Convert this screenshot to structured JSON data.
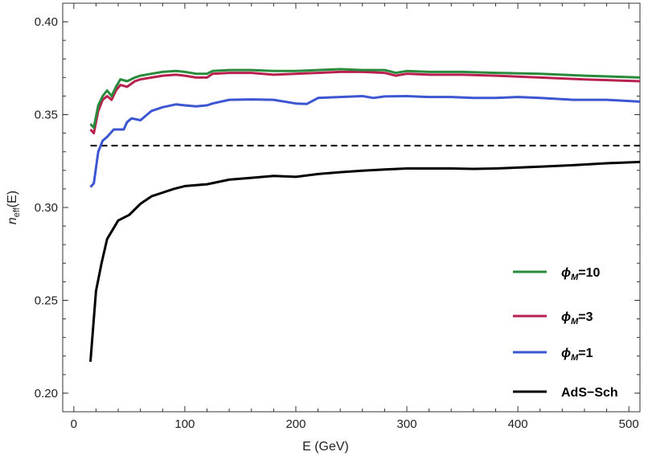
{
  "chart_data": {
    "type": "line",
    "xlabel": "E (GeV)",
    "ylabel_main": "n",
    "ylabel_sub": "eff",
    "ylabel_tail": "(E)",
    "xlim": [
      -10,
      510
    ],
    "ylim": [
      0.19,
      0.41
    ],
    "xticks": [
      0,
      100,
      200,
      300,
      400,
      500
    ],
    "xtick_labels": [
      "0",
      "100",
      "200",
      "300",
      "400",
      "500"
    ],
    "yticks": [
      0.2,
      0.25,
      0.3,
      0.35,
      0.4
    ],
    "ytick_labels": [
      "0.20",
      "0.25",
      "0.30",
      "0.35",
      "0.40"
    ],
    "reference_line": {
      "y": 0.3333,
      "style": "dashed",
      "color": "#000000"
    },
    "legend_position": "bottom-right",
    "series": [
      {
        "legend_prefix": "ϕ",
        "legend_sub": "M",
        "legend_suffix": "=10",
        "color": "#2a8a3c",
        "points": [
          [
            15,
            0.345
          ],
          [
            18,
            0.343
          ],
          [
            22,
            0.355
          ],
          [
            26,
            0.36
          ],
          [
            30,
            0.363
          ],
          [
            34,
            0.36
          ],
          [
            38,
            0.365
          ],
          [
            42,
            0.369
          ],
          [
            48,
            0.368
          ],
          [
            55,
            0.37
          ],
          [
            60,
            0.371
          ],
          [
            70,
            0.372
          ],
          [
            80,
            0.373
          ],
          [
            92,
            0.3735
          ],
          [
            100,
            0.373
          ],
          [
            110,
            0.372
          ],
          [
            120,
            0.372
          ],
          [
            125,
            0.3735
          ],
          [
            140,
            0.374
          ],
          [
            160,
            0.374
          ],
          [
            180,
            0.3735
          ],
          [
            200,
            0.3735
          ],
          [
            220,
            0.374
          ],
          [
            240,
            0.3745
          ],
          [
            260,
            0.374
          ],
          [
            280,
            0.374
          ],
          [
            290,
            0.3725
          ],
          [
            300,
            0.3735
          ],
          [
            320,
            0.373
          ],
          [
            350,
            0.373
          ],
          [
            380,
            0.3725
          ],
          [
            420,
            0.372
          ],
          [
            460,
            0.371
          ],
          [
            510,
            0.37
          ]
        ]
      },
      {
        "legend_prefix": "ϕ",
        "legend_sub": "M",
        "legend_suffix": "=3",
        "color": "#b8204f",
        "points": [
          [
            15,
            0.342
          ],
          [
            18,
            0.34
          ],
          [
            22,
            0.352
          ],
          [
            26,
            0.358
          ],
          [
            30,
            0.36
          ],
          [
            34,
            0.358
          ],
          [
            38,
            0.363
          ],
          [
            42,
            0.366
          ],
          [
            48,
            0.365
          ],
          [
            55,
            0.368
          ],
          [
            60,
            0.369
          ],
          [
            70,
            0.37
          ],
          [
            80,
            0.371
          ],
          [
            92,
            0.3715
          ],
          [
            100,
            0.371
          ],
          [
            110,
            0.37
          ],
          [
            120,
            0.37
          ],
          [
            125,
            0.372
          ],
          [
            140,
            0.3725
          ],
          [
            160,
            0.3725
          ],
          [
            180,
            0.3715
          ],
          [
            200,
            0.372
          ],
          [
            220,
            0.3725
          ],
          [
            240,
            0.373
          ],
          [
            260,
            0.373
          ],
          [
            280,
            0.3725
          ],
          [
            290,
            0.371
          ],
          [
            300,
            0.372
          ],
          [
            320,
            0.3715
          ],
          [
            350,
            0.3715
          ],
          [
            380,
            0.371
          ],
          [
            420,
            0.37
          ],
          [
            460,
            0.369
          ],
          [
            510,
            0.368
          ]
        ]
      },
      {
        "legend_prefix": "ϕ",
        "legend_sub": "M",
        "legend_suffix": "=1",
        "color": "#3c55d0",
        "points": [
          [
            15,
            0.311
          ],
          [
            18,
            0.313
          ],
          [
            22,
            0.33
          ],
          [
            26,
            0.336
          ],
          [
            30,
            0.338
          ],
          [
            36,
            0.342
          ],
          [
            40,
            0.342
          ],
          [
            45,
            0.342
          ],
          [
            48,
            0.346
          ],
          [
            52,
            0.348
          ],
          [
            60,
            0.347
          ],
          [
            70,
            0.352
          ],
          [
            80,
            0.354
          ],
          [
            92,
            0.3555
          ],
          [
            100,
            0.355
          ],
          [
            110,
            0.3545
          ],
          [
            120,
            0.355
          ],
          [
            125,
            0.356
          ],
          [
            140,
            0.358
          ],
          [
            160,
            0.3582
          ],
          [
            180,
            0.358
          ],
          [
            200,
            0.356
          ],
          [
            210,
            0.3558
          ],
          [
            220,
            0.359
          ],
          [
            240,
            0.3595
          ],
          [
            260,
            0.36
          ],
          [
            270,
            0.359
          ],
          [
            280,
            0.3598
          ],
          [
            300,
            0.36
          ],
          [
            320,
            0.3595
          ],
          [
            340,
            0.3595
          ],
          [
            360,
            0.359
          ],
          [
            380,
            0.359
          ],
          [
            400,
            0.3595
          ],
          [
            420,
            0.359
          ],
          [
            450,
            0.358
          ],
          [
            480,
            0.358
          ],
          [
            510,
            0.357
          ]
        ]
      },
      {
        "legend_prefix": "AdS−Sch",
        "legend_sub": "",
        "legend_suffix": "",
        "color": "#000000",
        "points": [
          [
            15,
            0.217
          ],
          [
            20,
            0.255
          ],
          [
            25,
            0.27
          ],
          [
            30,
            0.283
          ],
          [
            40,
            0.293
          ],
          [
            50,
            0.296
          ],
          [
            60,
            0.302
          ],
          [
            70,
            0.306
          ],
          [
            80,
            0.308
          ],
          [
            90,
            0.31
          ],
          [
            100,
            0.3115
          ],
          [
            110,
            0.312
          ],
          [
            120,
            0.3125
          ],
          [
            140,
            0.315
          ],
          [
            160,
            0.316
          ],
          [
            180,
            0.317
          ],
          [
            200,
            0.3165
          ],
          [
            220,
            0.318
          ],
          [
            240,
            0.319
          ],
          [
            260,
            0.3198
          ],
          [
            280,
            0.3205
          ],
          [
            300,
            0.321
          ],
          [
            320,
            0.321
          ],
          [
            340,
            0.321
          ],
          [
            360,
            0.3208
          ],
          [
            380,
            0.321
          ],
          [
            400,
            0.3215
          ],
          [
            420,
            0.322
          ],
          [
            450,
            0.3228
          ],
          [
            480,
            0.3238
          ],
          [
            510,
            0.3245
          ]
        ]
      }
    ]
  }
}
